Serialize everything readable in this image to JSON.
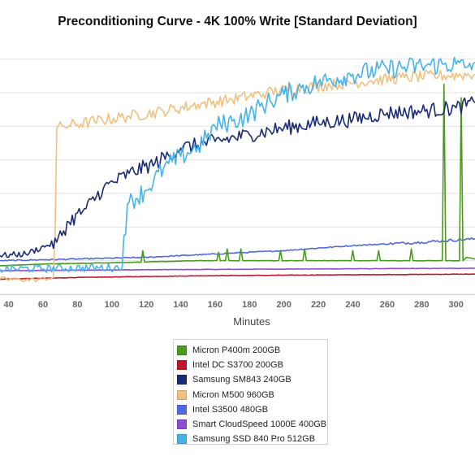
{
  "chart_data": {
    "type": "line",
    "title": "Preconditioning Curve - 4K 100% Write [Standard Deviation]",
    "xlabel": "Minutes",
    "ylabel": "",
    "x_ticks": [
      "40",
      "60",
      "80",
      "100",
      "120",
      "140",
      "160",
      "180",
      "200",
      "220",
      "240",
      "260",
      "280",
      "300"
    ],
    "xlim": [
      35,
      311
    ],
    "ylim": [
      0,
      15
    ],
    "grid": "horizontal",
    "legend_position": "bottom-center",
    "series": [
      {
        "name": "Micron P400m 200GB",
        "color": "#4a9a1c",
        "points": [
          [
            35,
            1.7
          ],
          [
            60,
            1.8
          ],
          [
            110,
            1.9
          ],
          [
            150,
            2.0
          ],
          [
            200,
            2.0
          ],
          [
            250,
            2.0
          ],
          [
            290,
            2.0
          ],
          [
            292,
            2.0
          ],
          [
            293,
            12.5
          ],
          [
            294,
            2.0
          ],
          [
            302,
            2.0
          ],
          [
            303,
            11.7
          ],
          [
            304,
            2.0
          ],
          [
            306,
            2.2
          ],
          [
            311,
            2.1
          ]
        ],
        "spikes": [
          [
            118,
            2.6
          ],
          [
            162,
            2.5
          ],
          [
            167,
            2.7
          ],
          [
            175,
            2.7
          ],
          [
            198,
            2.6
          ],
          [
            212,
            2.7
          ],
          [
            240,
            2.6
          ],
          [
            255,
            2.6
          ],
          [
            274,
            2.7
          ]
        ]
      },
      {
        "name": "Intel DC S3700 200GB",
        "color": "#c0182a",
        "points": [
          [
            35,
            0.9
          ],
          [
            80,
            1.0
          ],
          [
            150,
            1.1
          ],
          [
            220,
            1.15
          ],
          [
            311,
            1.2
          ]
        ]
      },
      {
        "name": "Samsung SM843 240GB",
        "color": "#1a2b73",
        "points": [
          [
            35,
            2.3
          ],
          [
            50,
            2.4
          ],
          [
            62,
            2.9
          ],
          [
            68,
            3.1
          ],
          [
            75,
            4.3
          ],
          [
            85,
            5.1
          ],
          [
            95,
            6.3
          ],
          [
            110,
            7.2
          ],
          [
            125,
            7.8
          ],
          [
            140,
            8.7
          ],
          [
            160,
            9.1
          ],
          [
            180,
            9.5
          ],
          [
            200,
            9.9
          ],
          [
            220,
            10.2
          ],
          [
            240,
            10.4
          ],
          [
            260,
            10.8
          ],
          [
            280,
            10.9
          ],
          [
            300,
            11.1
          ],
          [
            311,
            11.4
          ]
        ]
      },
      {
        "name": "Micron M500 960GB",
        "color": "#f0c080",
        "points": [
          [
            35,
            0.9
          ],
          [
            55,
            0.85
          ],
          [
            66,
            1.0
          ],
          [
            67,
            3.5
          ],
          [
            68,
            9.9
          ],
          [
            72,
            10.0
          ],
          [
            90,
            10.3
          ],
          [
            110,
            10.6
          ],
          [
            130,
            10.9
          ],
          [
            150,
            11.3
          ],
          [
            170,
            11.6
          ],
          [
            190,
            12.0
          ],
          [
            210,
            12.3
          ],
          [
            230,
            12.5
          ],
          [
            250,
            12.7
          ],
          [
            270,
            12.9
          ],
          [
            290,
            13.0
          ],
          [
            311,
            13.1
          ]
        ]
      },
      {
        "name": "Intel S3500 480GB",
        "color": "#5068e0",
        "points": [
          [
            35,
            2.0
          ],
          [
            80,
            2.1
          ],
          [
            120,
            2.2
          ],
          [
            160,
            2.4
          ],
          [
            200,
            2.6
          ],
          [
            240,
            2.9
          ],
          [
            280,
            3.1
          ],
          [
            311,
            3.3
          ]
        ]
      },
      {
        "name": "Smart CloudSpeed 1000E 400GB",
        "color": "#8c4cd6",
        "points": [
          [
            35,
            1.4
          ],
          [
            100,
            1.45
          ],
          [
            200,
            1.5
          ],
          [
            311,
            1.55
          ]
        ]
      },
      {
        "name": "Samsung SSD 840 Pro 512GB",
        "color": "#45b3e8",
        "points": [
          [
            35,
            1.5
          ],
          [
            106,
            1.6
          ],
          [
            107,
            3.5
          ],
          [
            110,
            5.5
          ],
          [
            120,
            6.2
          ],
          [
            130,
            7.5
          ],
          [
            140,
            8.2
          ],
          [
            150,
            8.8
          ],
          [
            155,
            9.3
          ],
          [
            160,
            10.0
          ],
          [
            170,
            10.3
          ],
          [
            180,
            10.7
          ],
          [
            190,
            11.4
          ],
          [
            200,
            11.9
          ],
          [
            210,
            12.3
          ],
          [
            220,
            12.6
          ],
          [
            240,
            13.1
          ],
          [
            260,
            13.4
          ],
          [
            280,
            13.6
          ],
          [
            300,
            13.7
          ],
          [
            305,
            13.5
          ],
          [
            311,
            13.8
          ]
        ]
      }
    ]
  }
}
